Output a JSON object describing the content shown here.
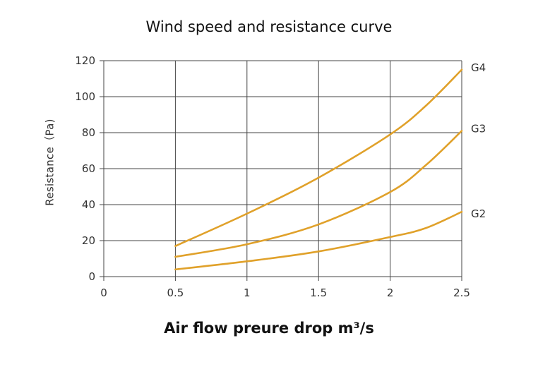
{
  "chart_data": {
    "type": "line",
    "title": "Wind speed and resistance curve",
    "xlabel": "Air flow preure drop m³/s",
    "ylabel": "Resistance（Pa)",
    "xlim": [
      0,
      2.5
    ],
    "ylim": [
      0,
      120
    ],
    "xticks": [
      "0",
      "0.5",
      "1",
      "1.5",
      "2",
      "2.5"
    ],
    "yticks": [
      "0",
      "20",
      "40",
      "60",
      "80",
      "100",
      "120"
    ],
    "grid": true,
    "color": "#e0a12a",
    "series": [
      {
        "name": "G4",
        "x": [
          0.5,
          1.0,
          1.5,
          2.0,
          2.25,
          2.5
        ],
        "values": [
          17,
          35,
          55,
          79,
          95,
          115
        ]
      },
      {
        "name": "G3",
        "x": [
          0.5,
          1.0,
          1.5,
          2.0,
          2.25,
          2.5
        ],
        "values": [
          11,
          18,
          29,
          47,
          62,
          81
        ]
      },
      {
        "name": "G2",
        "x": [
          0.5,
          1.0,
          1.5,
          2.0,
          2.25,
          2.5
        ],
        "values": [
          4,
          8.5,
          14,
          22,
          27,
          36
        ]
      }
    ]
  }
}
